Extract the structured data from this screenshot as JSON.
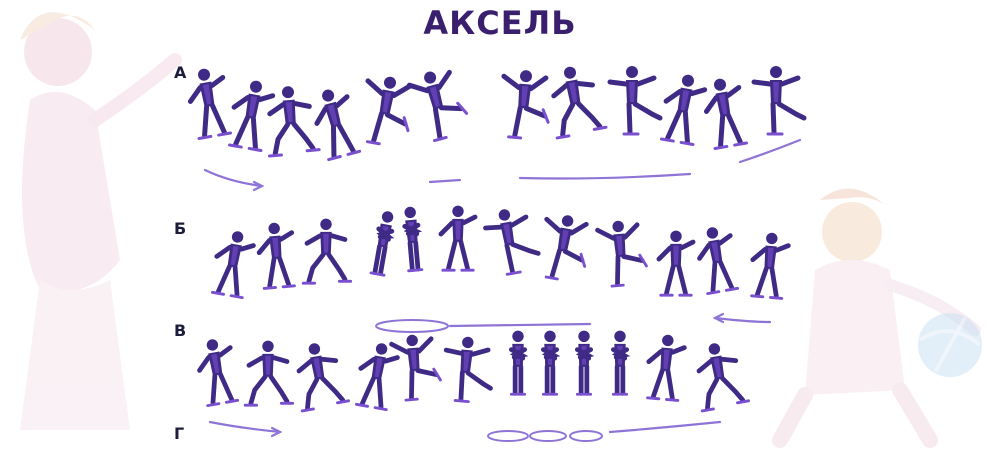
{
  "title": "АКСЕЛЬ",
  "colors": {
    "title": "#3a1f6e",
    "figure": "#3f2a86",
    "accent": "#7a4fd0",
    "figure_light": "#8e74d6",
    "bg_girl": "#f3dbe6",
    "bg_skater": "#f6e3ea",
    "bg_ball": "#cfe3f4"
  },
  "rows": [
    {
      "key": "a",
      "label": "А"
    },
    {
      "key": "b",
      "label": "Б"
    },
    {
      "key": "v",
      "label": "В"
    },
    {
      "key": "g",
      "label": "Г"
    }
  ]
}
